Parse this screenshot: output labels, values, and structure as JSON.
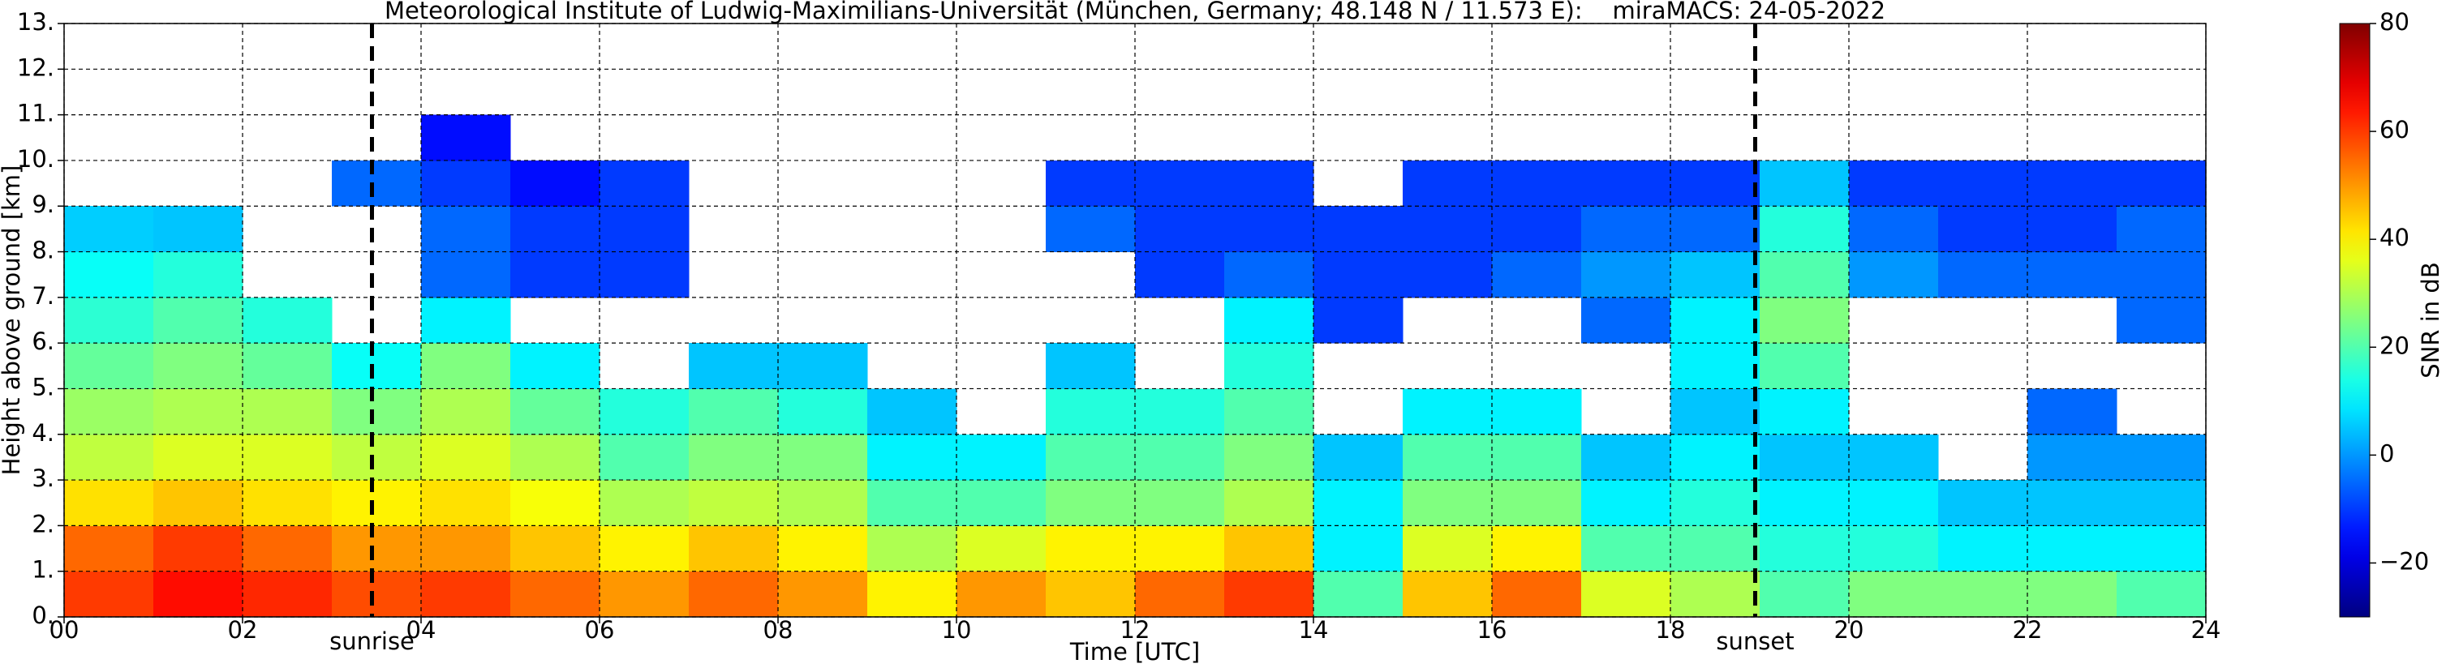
{
  "chart_data": {
    "type": "heatmap",
    "title": "Meteorological Institute of Ludwig-Maximilians-Universität (München, Germany; 48.148 N / 11.573 E):    miraMACS: 24-05-2022",
    "xlabel": "Time [UTC]",
    "ylabel": "Height above ground [km]",
    "colorbar_label": "SNR in dB",
    "x_bins": [
      0,
      1,
      2,
      3,
      4,
      5,
      6,
      7,
      8,
      9,
      10,
      11,
      12,
      13,
      14,
      15,
      16,
      17,
      18,
      19,
      20,
      21,
      22,
      23,
      24
    ],
    "y_bins": [
      0,
      1,
      2,
      3,
      4,
      5,
      6,
      7,
      8,
      9,
      10,
      11,
      12,
      13
    ],
    "z": [
      [
        60,
        55,
        42,
        32,
        28,
        22,
        16,
        12,
        6,
        null,
        null,
        null,
        null
      ],
      [
        65,
        60,
        45,
        35,
        30,
        25,
        20,
        15,
        5,
        null,
        null,
        null,
        null
      ],
      [
        62,
        55,
        42,
        35,
        30,
        22,
        15,
        null,
        null,
        null,
        null,
        null,
        null
      ],
      [
        58,
        50,
        40,
        32,
        25,
        12,
        null,
        null,
        null,
        -5,
        null,
        null,
        null
      ],
      [
        60,
        50,
        42,
        35,
        30,
        25,
        10,
        -5,
        -5,
        -10,
        -15,
        null,
        null
      ],
      [
        55,
        45,
        38,
        30,
        22,
        10,
        null,
        -10,
        -10,
        -15,
        null,
        null,
        null
      ],
      [
        50,
        40,
        30,
        20,
        15,
        null,
        null,
        -10,
        -10,
        -10,
        null,
        null,
        null
      ],
      [
        55,
        45,
        32,
        25,
        20,
        5,
        null,
        null,
        null,
        null,
        null,
        null,
        null
      ],
      [
        50,
        40,
        30,
        25,
        15,
        5,
        null,
        null,
        null,
        null,
        null,
        null,
        null
      ],
      [
        40,
        30,
        20,
        10,
        5,
        null,
        null,
        null,
        null,
        null,
        null,
        null,
        null
      ],
      [
        50,
        35,
        20,
        10,
        null,
        null,
        null,
        null,
        null,
        null,
        null,
        null,
        null
      ],
      [
        45,
        40,
        25,
        20,
        15,
        5,
        null,
        null,
        -5,
        -10,
        null,
        null,
        null
      ],
      [
        55,
        40,
        25,
        20,
        15,
        null,
        null,
        -10,
        -10,
        -10,
        null,
        null,
        null
      ],
      [
        60,
        45,
        30,
        25,
        20,
        15,
        10,
        -5,
        -10,
        -10,
        null,
        null,
        null
      ],
      [
        20,
        10,
        10,
        5,
        null,
        null,
        -10,
        -10,
        -10,
        null,
        null,
        null,
        null
      ],
      [
        45,
        35,
        25,
        20,
        10,
        null,
        null,
        -10,
        -10,
        -10,
        null,
        null,
        null
      ],
      [
        55,
        40,
        25,
        20,
        10,
        null,
        null,
        -5,
        -10,
        -10,
        null,
        null,
        null
      ],
      [
        35,
        20,
        10,
        5,
        null,
        null,
        -5,
        0,
        -5,
        -10,
        null,
        null,
        null
      ],
      [
        30,
        20,
        15,
        10,
        5,
        10,
        10,
        5,
        -5,
        -10,
        null,
        null,
        null
      ],
      [
        20,
        15,
        10,
        5,
        10,
        20,
        25,
        20,
        15,
        5,
        null,
        null,
        null
      ],
      [
        25,
        15,
        10,
        5,
        null,
        null,
        null,
        0,
        -5,
        -10,
        null,
        null,
        null
      ],
      [
        25,
        10,
        5,
        null,
        null,
        null,
        null,
        -5,
        -10,
        -10,
        null,
        null,
        null
      ],
      [
        25,
        10,
        5,
        0,
        -5,
        null,
        null,
        -5,
        -10,
        -10,
        null,
        null,
        null
      ],
      [
        20,
        10,
        5,
        0,
        null,
        null,
        -5,
        -5,
        -5,
        -10,
        null,
        null,
        null
      ]
    ],
    "xlim": [
      0,
      24
    ],
    "xticks": [
      {
        "value": 0,
        "label": "00"
      },
      {
        "value": 2,
        "label": "02"
      },
      {
        "value": 4,
        "label": "04"
      },
      {
        "value": 6,
        "label": "06"
      },
      {
        "value": 8,
        "label": "08"
      },
      10,
      12,
      14,
      16,
      18,
      20,
      22,
      24
    ],
    "ylim": [
      0,
      13
    ],
    "yticks": [
      {
        "value": 0,
        "label": "0."
      },
      {
        "value": 1,
        "label": "1."
      },
      {
        "value": 2,
        "label": "2."
      },
      {
        "value": 3,
        "label": "3."
      },
      {
        "value": 4,
        "label": "4."
      },
      {
        "value": 5,
        "label": "5."
      },
      {
        "value": 6,
        "label": "6."
      },
      {
        "value": 7,
        "label": "7."
      },
      {
        "value": 8,
        "label": "8."
      },
      {
        "value": 9,
        "label": "9."
      },
      {
        "value": 10,
        "label": "10."
      },
      {
        "value": 11,
        "label": "11."
      },
      {
        "value": 12,
        "label": "12."
      },
      {
        "value": 13,
        "label": "13."
      }
    ],
    "clim": [
      -30,
      80
    ],
    "cticks": [
      {
        "value": -20,
        "label": "−20"
      },
      0,
      20,
      40,
      60,
      80
    ],
    "colormap": "jet",
    "grid": true,
    "annotations": [
      {
        "label": "sunrise",
        "x": 3.45
      },
      {
        "label": "sunset",
        "x": 18.95
      }
    ]
  }
}
